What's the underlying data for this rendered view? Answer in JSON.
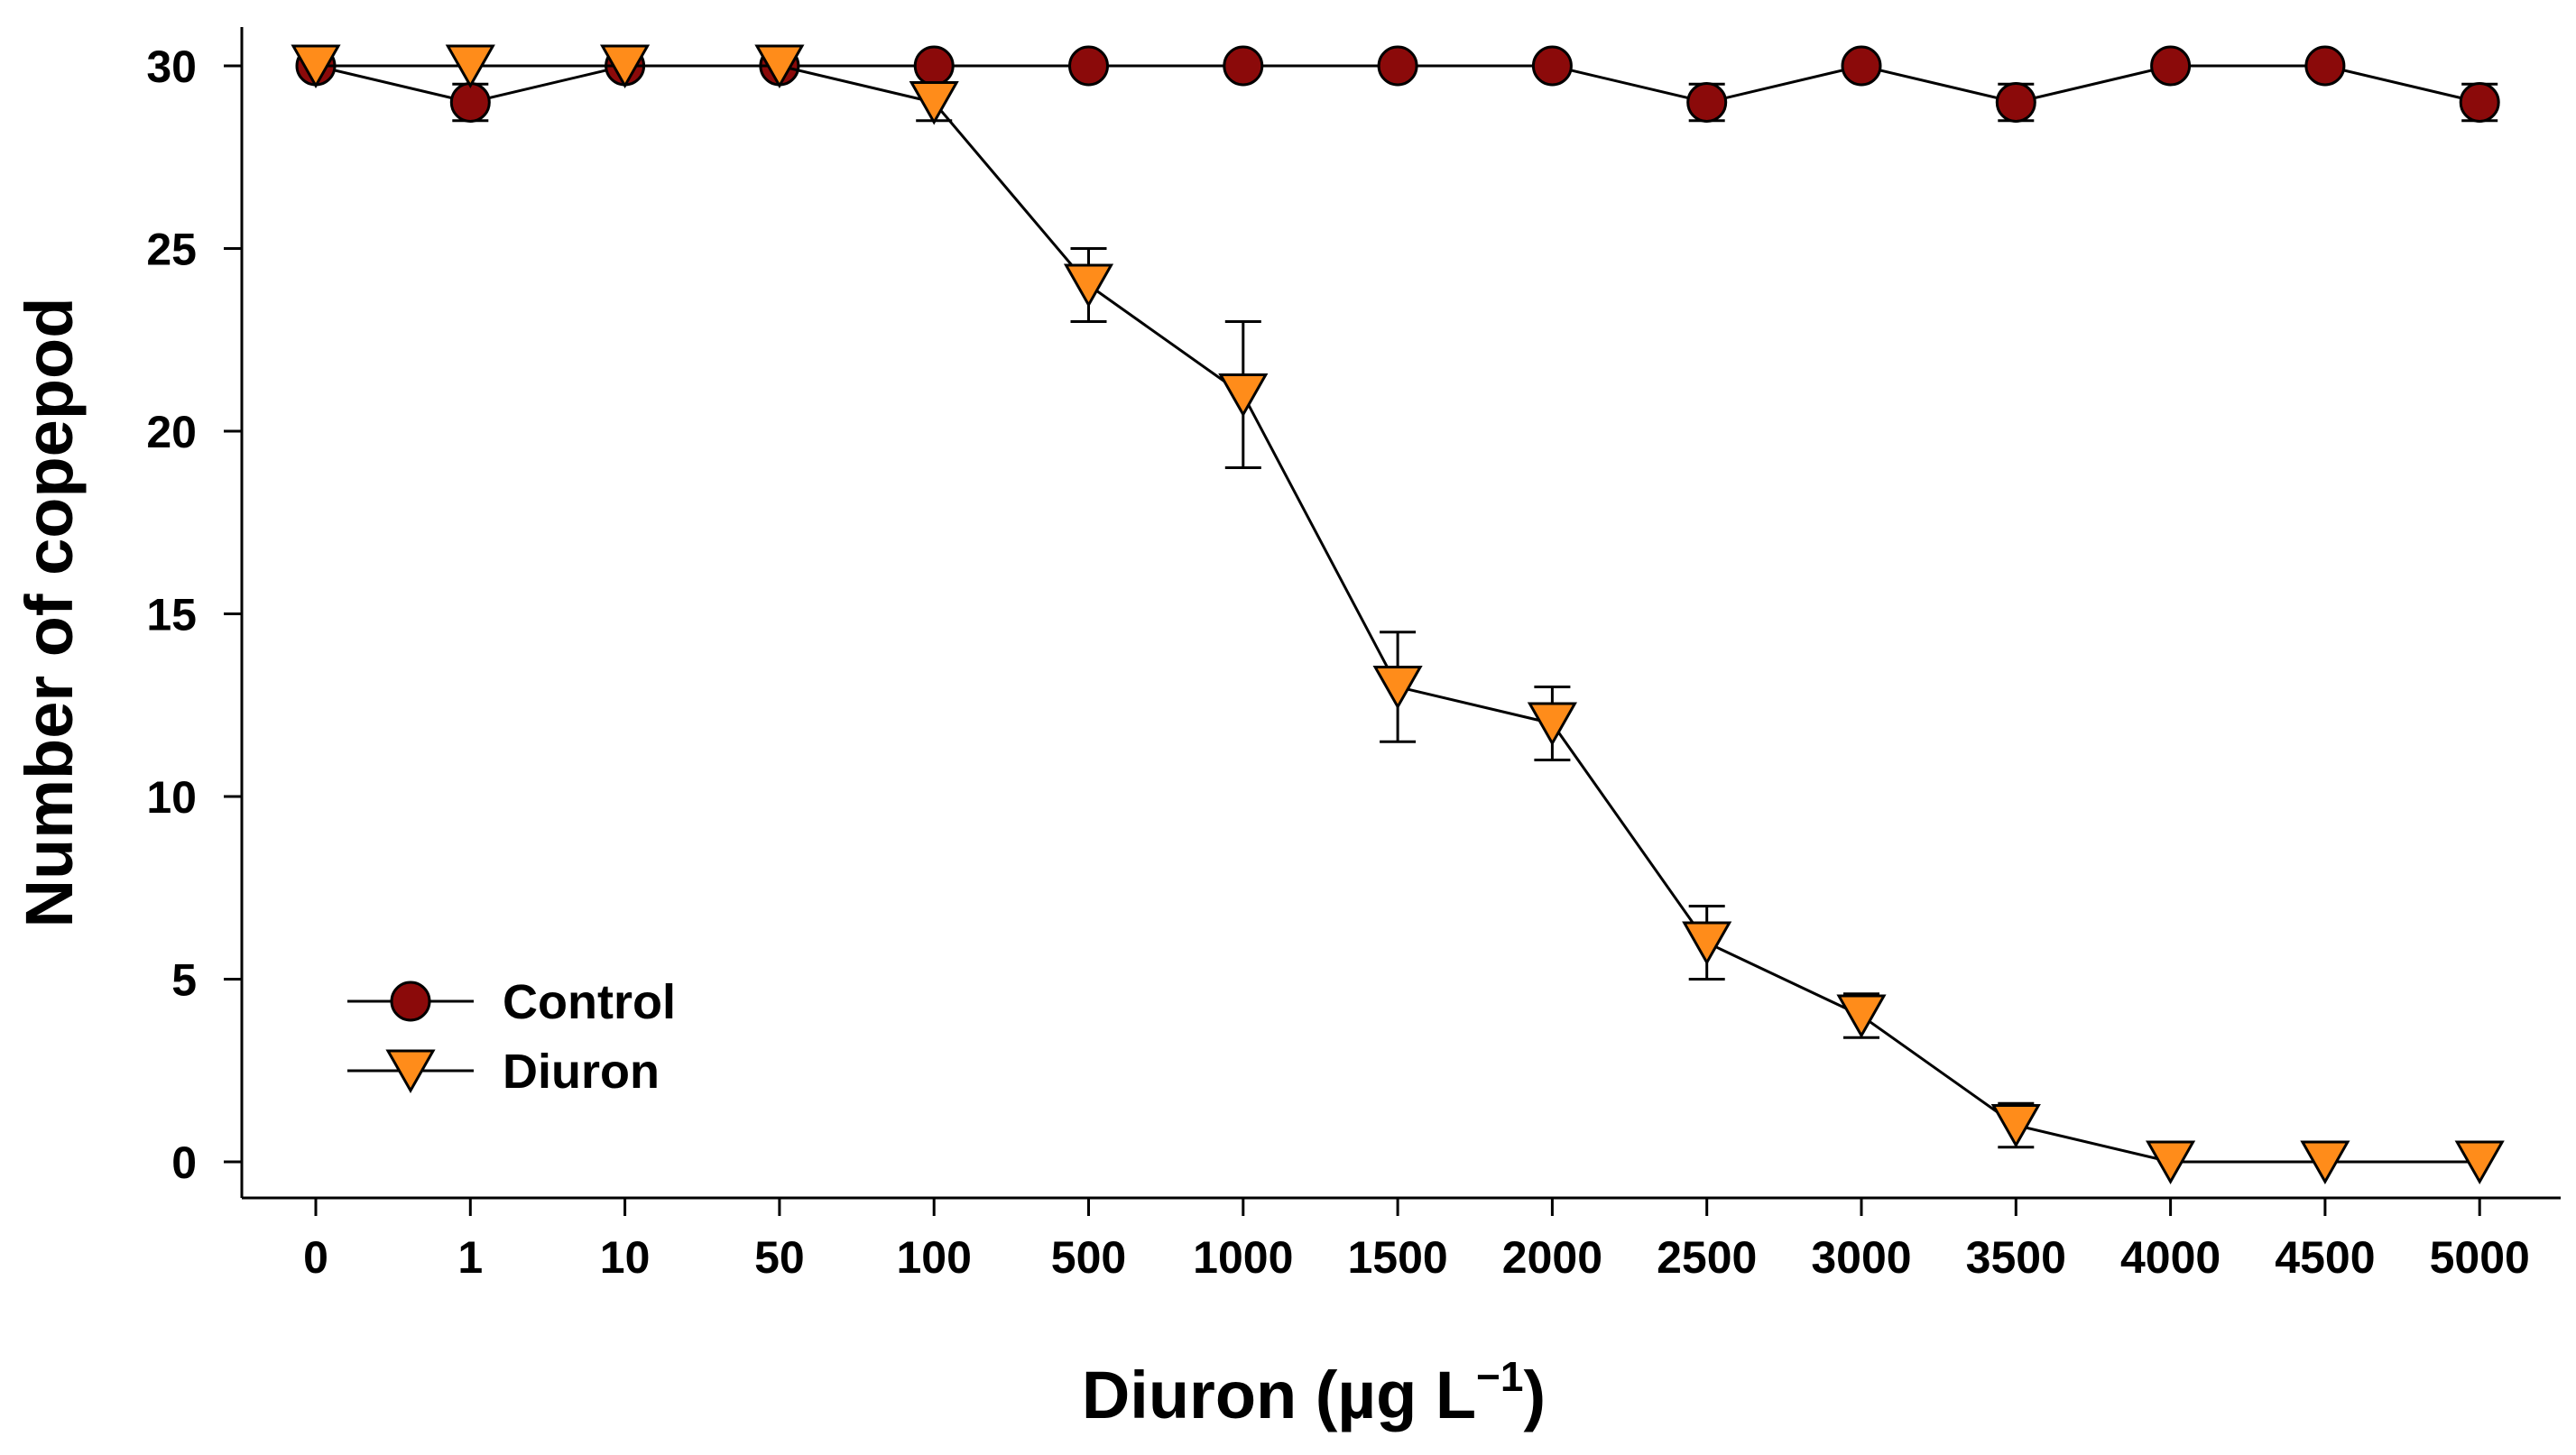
{
  "chart_data": {
    "type": "line",
    "title": "",
    "xlabel": "Diuron (µg L",
    "xlabel_sup": "−1",
    "xlabel_close": ")",
    "ylabel": "Number of copepod",
    "categories": [
      "0",
      "1",
      "10",
      "50",
      "100",
      "500",
      "1000",
      "1500",
      "2000",
      "2500",
      "3000",
      "3500",
      "4000",
      "4500",
      "5000"
    ],
    "ylim": [
      0,
      30
    ],
    "yticks": [
      "0",
      "5",
      "10",
      "15",
      "20",
      "25",
      "30"
    ],
    "legend_position": "bottom-left",
    "series": [
      {
        "name": "Control",
        "marker": "circle",
        "color": "#8b0a0a",
        "values": [
          30,
          29,
          30,
          30,
          30,
          30,
          30,
          30,
          30,
          29,
          30,
          29,
          30,
          30,
          29
        ],
        "errors": [
          0,
          0.5,
          0,
          0,
          0,
          0,
          0,
          0,
          0,
          0.5,
          0,
          0.5,
          0,
          0,
          0.5
        ]
      },
      {
        "name": "Diuron",
        "marker": "triangle-down",
        "color": "#ff8c1a",
        "values": [
          30,
          30,
          30,
          30,
          29,
          24,
          21,
          13,
          12,
          6,
          4,
          1,
          0,
          0,
          0
        ],
        "errors": [
          0,
          0,
          0,
          0,
          0.5,
          1,
          2,
          1.5,
          1,
          1,
          0.6,
          0.6,
          0,
          0,
          0
        ]
      }
    ]
  }
}
